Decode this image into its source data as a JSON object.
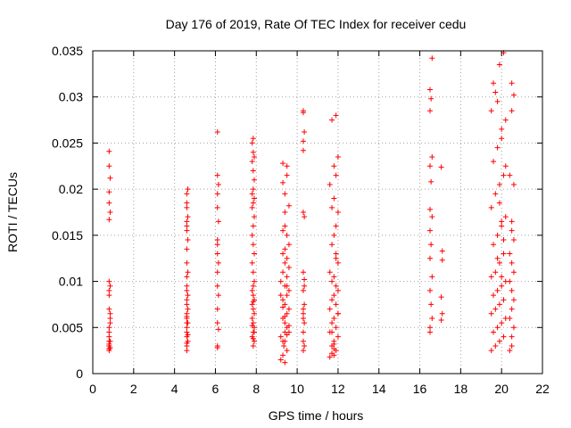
{
  "chart_data": {
    "type": "scatter",
    "title": "Day 176 of 2019, Rate Of TEC Index for receiver cedu",
    "xlabel": "GPS time / hours",
    "ylabel": "ROTI / TECUs",
    "xlim": [
      0,
      22
    ],
    "ylim": [
      0,
      0.035
    ],
    "x_ticks": [
      0,
      2,
      4,
      6,
      8,
      10,
      12,
      14,
      16,
      18,
      20,
      22
    ],
    "x_tick_labels": [
      "0",
      "2",
      "4",
      "6",
      "8",
      "10",
      "12",
      "14",
      "16",
      "18",
      "20",
      "22"
    ],
    "y_ticks": [
      0,
      0.005,
      0.01,
      0.015,
      0.02,
      0.025,
      0.03,
      0.035
    ],
    "y_tick_labels": [
      "0",
      "0.005",
      "0.01",
      "0.015",
      "0.02",
      "0.025",
      "0.03",
      "0.035"
    ],
    "grid": true,
    "marker": "+",
    "color": "#ff0000",
    "series": [
      {
        "name": "ROTI",
        "x": [
          0.8,
          0.8,
          0.8,
          0.8,
          0.8,
          0.8,
          0.85,
          0.85,
          0.8,
          0.8,
          0.8,
          0.85,
          0.8,
          0.85,
          0.8,
          0.8,
          0.85,
          0.8,
          0.85,
          0.8,
          0.8,
          0.85,
          0.8,
          0.8,
          0.85,
          0.8,
          4.6,
          4.6,
          4.65,
          4.6,
          4.6,
          4.6,
          4.65,
          4.6,
          4.6,
          4.65,
          4.6,
          4.6,
          4.65,
          4.6,
          4.6,
          4.6,
          4.65,
          4.6,
          4.6,
          4.6,
          4.65,
          4.6,
          4.6,
          4.65,
          4.6,
          4.6,
          4.6,
          4.65,
          4.6,
          4.6,
          4.6,
          4.65,
          6.1,
          6.1,
          6.15,
          6.1,
          6.1,
          6.15,
          6.1,
          6.1,
          6.15,
          6.1,
          6.1,
          6.15,
          6.1,
          6.1,
          6.15,
          6.1,
          6.1,
          6.1,
          7.85,
          7.9,
          7.8,
          7.85,
          7.9,
          7.85,
          7.8,
          7.9,
          7.85,
          7.8,
          7.9,
          7.85,
          7.8,
          7.85,
          7.9,
          7.85,
          7.8,
          7.9,
          7.85,
          7.8,
          7.85,
          7.9,
          7.8,
          7.85,
          7.9,
          7.8,
          7.85,
          7.9,
          7.85,
          7.8,
          7.9,
          7.85,
          7.8,
          7.85,
          7.9,
          7.85,
          7.8,
          7.85,
          9.2,
          9.3,
          9.35,
          9.3,
          9.2,
          9.4,
          9.5,
          9.4,
          9.3,
          9.5,
          9.6,
          9.4,
          9.3,
          9.5,
          9.6,
          9.4,
          9.2,
          9.5,
          9.3,
          9.6,
          9.4,
          9.5,
          9.3,
          9.4,
          9.6,
          9.5,
          9.3,
          9.4,
          9.5,
          9.2,
          9.6,
          9.4,
          9.5,
          9.3,
          9.4,
          9.6,
          9.5,
          9.4,
          9.3,
          9.5,
          9.4,
          9.6,
          9.3,
          9.5,
          9.4,
          10.3,
          10.35,
          10.3,
          10.3,
          10.35,
          10.3,
          10.3,
          10.35,
          10.3,
          10.35,
          10.3,
          10.3,
          10.35,
          10.3,
          10.3,
          10.35,
          10.3,
          10.3,
          10.35,
          10.3,
          11.6,
          11.8,
          11.9,
          11.7,
          11.8,
          12.0,
          11.6,
          11.9,
          11.7,
          11.8,
          12.0,
          11.6,
          11.9,
          11.7,
          11.8,
          12.0,
          11.9,
          11.7,
          11.8,
          11.6,
          12.0,
          11.9,
          11.7,
          11.8,
          11.9,
          12.0,
          11.7,
          11.8,
          11.6,
          11.9,
          11.8,
          12.0,
          11.7,
          11.9,
          11.8,
          11.7,
          12.0,
          11.8,
          11.9,
          11.7,
          16.5,
          16.5,
          16.6,
          16.55,
          16.5,
          16.6,
          16.5,
          16.55,
          16.5,
          16.6,
          16.5,
          16.55,
          16.5,
          16.6,
          16.5,
          16.55,
          16.5,
          16.6,
          17.05,
          17.1,
          17.05,
          17.1,
          17.1,
          17.05,
          19.5,
          19.7,
          19.9,
          20.1,
          19.6,
          19.8,
          20.0,
          20.2,
          19.5,
          19.7,
          19.9,
          20.1,
          19.6,
          19.8,
          20.0,
          20.2,
          19.5,
          19.7,
          19.9,
          20.1,
          19.6,
          19.8,
          20.0,
          20.2,
          19.5,
          19.7,
          19.9,
          20.1,
          19.6,
          19.8,
          20.0,
          20.2,
          19.5,
          19.7,
          19.9,
          20.1,
          19.6,
          19.8,
          20.0,
          20.2,
          19.9,
          20.0,
          20.1,
          19.8,
          20.0,
          20.4,
          20.5,
          20.5,
          20.6,
          20.4,
          20.5,
          20.6,
          20.5,
          20.4,
          20.6,
          20.5,
          20.4,
          20.6,
          20.5,
          20.5,
          20.6,
          20.4,
          20.5,
          20.6,
          20.5
        ],
        "y": [
          0.0035,
          0.0025,
          0.004,
          0.003,
          0.0045,
          0.005,
          0.006,
          0.0065,
          0.007,
          0.0085,
          0.009,
          0.0095,
          0.01,
          0.0035,
          0.003,
          0.0027,
          0.0055,
          0.0167,
          0.0175,
          0.0185,
          0.0197,
          0.0212,
          0.0225,
          0.0241,
          0.0028,
          0.0032,
          0.0025,
          0.003,
          0.0035,
          0.004,
          0.0045,
          0.005,
          0.0055,
          0.006,
          0.0065,
          0.007,
          0.0075,
          0.008,
          0.0085,
          0.009,
          0.0095,
          0.0033,
          0.0042,
          0.0055,
          0.0062,
          0.0105,
          0.011,
          0.012,
          0.0135,
          0.0145,
          0.0155,
          0.016,
          0.0165,
          0.017,
          0.018,
          0.0185,
          0.0195,
          0.02,
          0.003,
          0.0028,
          0.0048,
          0.0055,
          0.007,
          0.0085,
          0.0095,
          0.011,
          0.012,
          0.013,
          0.014,
          0.0165,
          0.018,
          0.0195,
          0.0205,
          0.0215,
          0.0262,
          0.0145,
          0.003,
          0.0035,
          0.004,
          0.0045,
          0.005,
          0.0055,
          0.006,
          0.0065,
          0.007,
          0.0075,
          0.008,
          0.0085,
          0.009,
          0.0095,
          0.01,
          0.011,
          0.012,
          0.013,
          0.014,
          0.015,
          0.016,
          0.017,
          0.018,
          0.0185,
          0.019,
          0.0195,
          0.02,
          0.021,
          0.022,
          0.023,
          0.0235,
          0.024,
          0.025,
          0.0255,
          0.0045,
          0.0038,
          0.0052,
          0.0078,
          0.0015,
          0.002,
          0.003,
          0.0035,
          0.004,
          0.0045,
          0.005,
          0.0055,
          0.006,
          0.0065,
          0.007,
          0.0075,
          0.008,
          0.0085,
          0.009,
          0.0095,
          0.01,
          0.0105,
          0.011,
          0.0115,
          0.012,
          0.0125,
          0.013,
          0.0135,
          0.014,
          0.015,
          0.0155,
          0.016,
          0.0095,
          0.0085,
          0.0045,
          0.0035,
          0.0025,
          0.0072,
          0.0062,
          0.0052,
          0.0042,
          0.0012,
          0.0228,
          0.0225,
          0.0175,
          0.0182,
          0.0207,
          0.0215,
          0.0195,
          0.0025,
          0.003,
          0.0035,
          0.0045,
          0.0055,
          0.006,
          0.007,
          0.0075,
          0.009,
          0.0095,
          0.011,
          0.0175,
          0.017,
          0.0242,
          0.0252,
          0.0262,
          0.0285,
          0.0283,
          0.0102,
          0.0065,
          0.0018,
          0.002,
          0.0025,
          0.003,
          0.0035,
          0.004,
          0.0045,
          0.005,
          0.0055,
          0.006,
          0.0065,
          0.007,
          0.0075,
          0.008,
          0.0085,
          0.009,
          0.0095,
          0.01,
          0.0105,
          0.011,
          0.012,
          0.013,
          0.014,
          0.015,
          0.016,
          0.0175,
          0.018,
          0.019,
          0.0205,
          0.0215,
          0.0225,
          0.0235,
          0.0275,
          0.028,
          0.0032,
          0.0045,
          0.0065,
          0.0027,
          0.0125,
          0.0022,
          0.005,
          0.0045,
          0.006,
          0.0075,
          0.009,
          0.0105,
          0.0125,
          0.014,
          0.0155,
          0.017,
          0.0178,
          0.0208,
          0.0225,
          0.0235,
          0.0285,
          0.0298,
          0.0308,
          0.0342,
          0.0083,
          0.0065,
          0.0058,
          0.0123,
          0.0133,
          0.0224,
          0.0025,
          0.003,
          0.0035,
          0.004,
          0.0045,
          0.005,
          0.0055,
          0.006,
          0.0065,
          0.007,
          0.0075,
          0.008,
          0.0085,
          0.009,
          0.0095,
          0.01,
          0.0105,
          0.011,
          0.012,
          0.013,
          0.014,
          0.015,
          0.016,
          0.017,
          0.018,
          0.0195,
          0.0205,
          0.0215,
          0.023,
          0.0245,
          0.0255,
          0.0275,
          0.0285,
          0.0305,
          0.0335,
          0.0348,
          0.0315,
          0.0295,
          0.0265,
          0.0225,
          0.0185,
          0.0165,
          0.0145,
          0.0125,
          0.0105,
          0.0025,
          0.003,
          0.004,
          0.005,
          0.006,
          0.007,
          0.008,
          0.009,
          0.01,
          0.011,
          0.012,
          0.013,
          0.0145,
          0.0155,
          0.0165,
          0.0205,
          0.0215,
          0.0285,
          0.0302,
          0.0315
        ]
      }
    ]
  }
}
